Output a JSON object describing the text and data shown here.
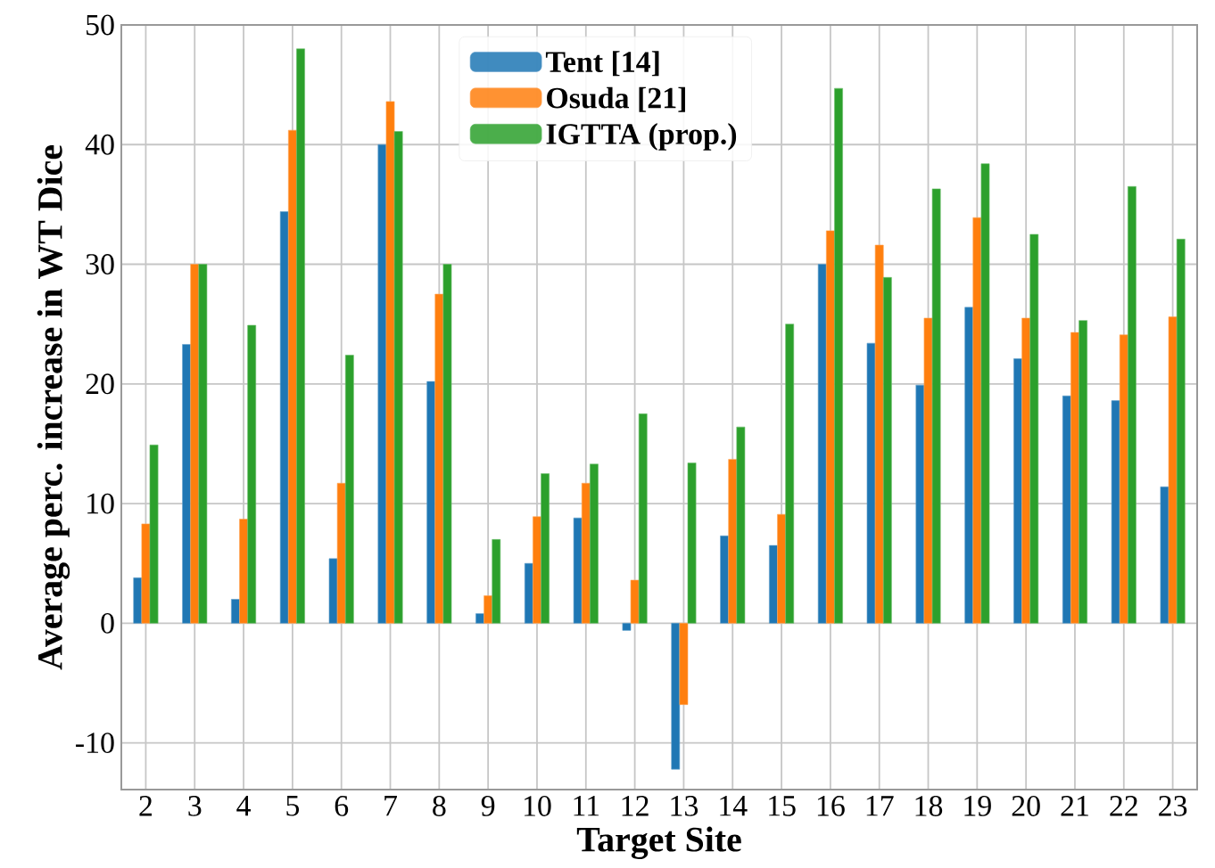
{
  "chart_data": {
    "type": "bar",
    "xlabel": "Target Site",
    "ylabel": "Average perc. increase in WT Dice",
    "categories": [
      "2",
      "3",
      "4",
      "5",
      "6",
      "7",
      "8",
      "9",
      "10",
      "11",
      "12",
      "13",
      "14",
      "15",
      "16",
      "17",
      "18",
      "19",
      "20",
      "21",
      "22",
      "23"
    ],
    "series": [
      {
        "name": "Tent [14]",
        "color": "#1f77b4",
        "values": [
          3.8,
          23.3,
          2.0,
          34.4,
          5.4,
          40.0,
          20.2,
          0.8,
          5.0,
          8.8,
          -0.6,
          -12.2,
          7.3,
          6.5,
          30.0,
          23.4,
          19.9,
          26.4,
          22.1,
          19.0,
          18.6,
          11.4
        ]
      },
      {
        "name": "Osuda [21]",
        "color": "#ff7f0e",
        "values": [
          8.3,
          30.0,
          8.7,
          41.2,
          11.7,
          43.6,
          27.5,
          2.3,
          8.9,
          11.7,
          3.6,
          -6.8,
          13.7,
          9.1,
          32.8,
          31.6,
          25.5,
          33.9,
          25.5,
          24.3,
          24.1,
          25.6
        ]
      },
      {
        "name": "IGTTA (prop.)",
        "color": "#2ca02c",
        "values": [
          14.9,
          30.0,
          24.9,
          48.0,
          22.4,
          41.1,
          30.0,
          7.0,
          12.5,
          13.3,
          17.5,
          13.4,
          16.4,
          25.0,
          44.7,
          28.9,
          36.3,
          38.4,
          32.5,
          25.3,
          36.5,
          32.1
        ]
      }
    ],
    "ylim": [
      -13.9,
      50
    ],
    "yticks": [
      -10,
      0,
      10,
      20,
      30,
      40,
      50
    ],
    "grid": true,
    "legend": "top"
  }
}
